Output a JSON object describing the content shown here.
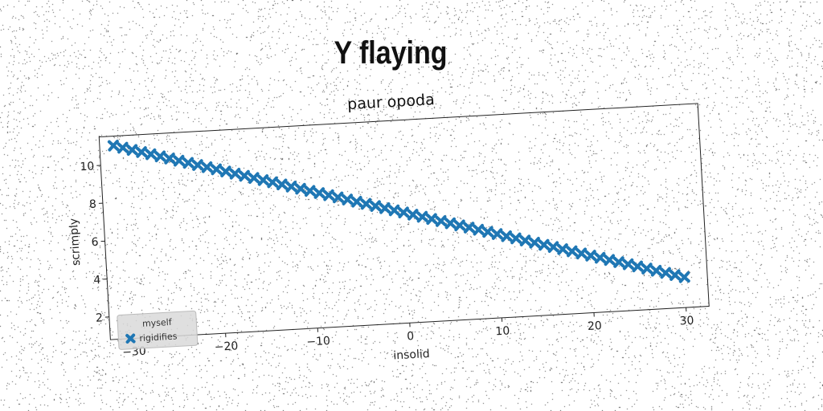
{
  "suptitle": "Y flaying",
  "chart_data": {
    "type": "scatter",
    "title": "paur opoda",
    "xlabel": "insolid",
    "ylabel": "scrimply",
    "xlim": [
      -32.5,
      32.5
    ],
    "ylim": [
      0.8,
      11.5
    ],
    "xticks": [
      -30,
      -20,
      -10,
      0,
      10,
      20,
      30
    ],
    "xtick_labels": [
      "−30",
      "−20",
      "−10",
      "0",
      "10",
      "20",
      "30"
    ],
    "yticks": [
      2,
      4,
      6,
      8,
      10
    ],
    "ytick_labels": [
      "2",
      "4",
      "6",
      "8",
      "10"
    ],
    "grid": false,
    "legend": {
      "title": "myself",
      "placement": "lower-left"
    },
    "series": [
      {
        "name": "rigidifies",
        "marker": "X",
        "color": "#1f77b4",
        "x_range": [
          -31,
          30
        ],
        "x_step": 1,
        "y_at_x_start": 11.0,
        "y_at_x_end": 2.4
      }
    ]
  }
}
